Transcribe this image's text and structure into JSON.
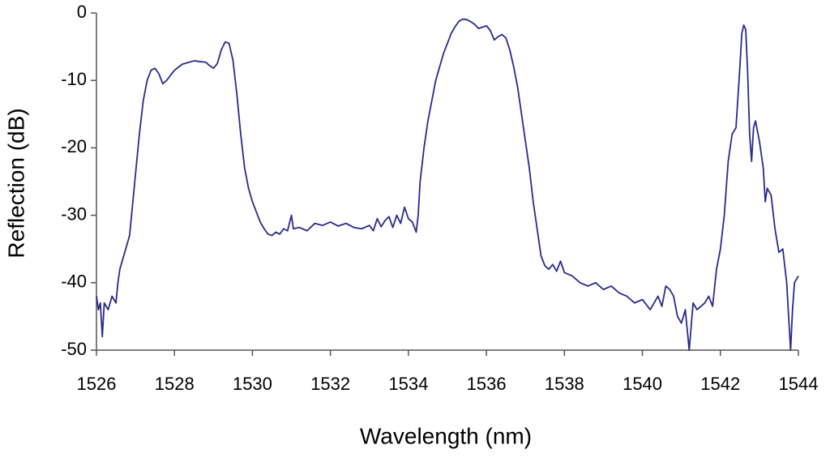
{
  "chart_data": {
    "type": "line",
    "x_label": "Wavelength (nm)",
    "y_label": "Reflection (dB)",
    "xlim": [
      1526,
      1544
    ],
    "xticks": [
      1526,
      1528,
      1530,
      1532,
      1534,
      1536,
      1538,
      1540,
      1542,
      1544
    ],
    "ylim": [
      -50,
      0
    ],
    "yticks": [
      0,
      -10,
      -20,
      -30,
      -40,
      -50
    ],
    "grid": false,
    "series": [
      {
        "color": "#2a2a8c",
        "x": [
          1526.0,
          1526.05,
          1526.1,
          1526.15,
          1526.2,
          1526.3,
          1526.4,
          1526.5,
          1526.55,
          1526.6,
          1526.7,
          1526.8,
          1526.85,
          1526.9,
          1527.0,
          1527.1,
          1527.2,
          1527.3,
          1527.4,
          1527.5,
          1527.6,
          1527.7,
          1527.8,
          1528.0,
          1528.2,
          1528.5,
          1528.8,
          1528.9,
          1529.0,
          1529.1,
          1529.2,
          1529.3,
          1529.4,
          1529.5,
          1529.6,
          1529.7,
          1529.8,
          1529.9,
          1529.95,
          1530.0,
          1530.1,
          1530.2,
          1530.3,
          1530.4,
          1530.5,
          1530.6,
          1530.7,
          1530.8,
          1530.9,
          1531.0,
          1531.05,
          1531.2,
          1531.4,
          1531.6,
          1531.8,
          1532.0,
          1532.2,
          1532.4,
          1532.6,
          1532.8,
          1533.0,
          1533.1,
          1533.2,
          1533.3,
          1533.4,
          1533.5,
          1533.6,
          1533.7,
          1533.8,
          1533.9,
          1534.0,
          1534.1,
          1534.2,
          1534.25,
          1534.3,
          1534.4,
          1534.5,
          1534.6,
          1534.7,
          1534.8,
          1534.9,
          1535.0,
          1535.1,
          1535.2,
          1535.3,
          1535.4,
          1535.5,
          1535.6,
          1535.7,
          1535.8,
          1535.9,
          1536.0,
          1536.1,
          1536.2,
          1536.3,
          1536.4,
          1536.5,
          1536.6,
          1536.7,
          1536.8,
          1536.9,
          1537.0,
          1537.1,
          1537.2,
          1537.3,
          1537.4,
          1537.5,
          1537.6,
          1537.7,
          1537.8,
          1537.9,
          1538.0,
          1538.2,
          1538.4,
          1538.6,
          1538.8,
          1539.0,
          1539.2,
          1539.4,
          1539.6,
          1539.8,
          1540.0,
          1540.2,
          1540.4,
          1540.5,
          1540.6,
          1540.7,
          1540.8,
          1540.9,
          1541.0,
          1541.1,
          1541.2,
          1541.3,
          1541.4,
          1541.5,
          1541.6,
          1541.7,
          1541.8,
          1541.9,
          1542.0,
          1542.1,
          1542.2,
          1542.3,
          1542.4,
          1542.5,
          1542.55,
          1542.6,
          1542.65,
          1542.7,
          1542.75,
          1542.8,
          1542.85,
          1542.9,
          1543.0,
          1543.1,
          1543.15,
          1543.2,
          1543.3,
          1543.4,
          1543.5,
          1543.6,
          1543.7,
          1543.75,
          1543.8,
          1543.85,
          1543.9,
          1544.0
        ],
        "values": [
          -42,
          -44,
          -43,
          -48,
          -43,
          -44,
          -42,
          -43,
          -40,
          -38,
          -36,
          -34,
          -33,
          -30,
          -24,
          -18,
          -13,
          -10,
          -8.5,
          -8.2,
          -9,
          -10.5,
          -10,
          -8.5,
          -7.6,
          -7.1,
          -7.3,
          -7.8,
          -8.2,
          -7.5,
          -5.5,
          -4.3,
          -4.5,
          -7,
          -12,
          -18,
          -23,
          -26,
          -27,
          -28,
          -29.5,
          -31,
          -32,
          -32.8,
          -33,
          -32.5,
          -32.8,
          -32,
          -32.3,
          -30,
          -32,
          -31.8,
          -32.3,
          -31.2,
          -31.5,
          -31,
          -31.6,
          -31.2,
          -31.8,
          -32,
          -31.5,
          -32.3,
          -30.5,
          -31.7,
          -30.8,
          -30.2,
          -31.8,
          -30,
          -31.2,
          -28.8,
          -30.5,
          -31,
          -32.5,
          -30,
          -25,
          -20,
          -16,
          -13,
          -10,
          -8,
          -6,
          -4.5,
          -3,
          -2,
          -1.2,
          -0.9,
          -1,
          -1.3,
          -1.7,
          -2.3,
          -2.1,
          -1.9,
          -2.6,
          -4,
          -3.5,
          -3.2,
          -3.7,
          -5.5,
          -8,
          -11,
          -15,
          -19,
          -23,
          -28,
          -32,
          -36,
          -37.5,
          -38,
          -37.3,
          -38.3,
          -36.8,
          -38.5,
          -39,
          -40,
          -40.5,
          -40,
          -41,
          -40.5,
          -41.5,
          -42,
          -43,
          -42.5,
          -44,
          -42,
          -43.5,
          -40.5,
          -41,
          -42,
          -45,
          -46,
          -44,
          -50,
          -43,
          -44,
          -43.5,
          -43,
          -42,
          -43.5,
          -38,
          -35,
          -30,
          -22,
          -18,
          -17,
          -8,
          -3,
          -1.8,
          -2.5,
          -9,
          -18,
          -22,
          -17,
          -16,
          -19,
          -23,
          -28,
          -26,
          -27,
          -32,
          -35.5,
          -35,
          -40,
          -45,
          -50,
          -44,
          -40,
          -39
        ]
      }
    ]
  }
}
